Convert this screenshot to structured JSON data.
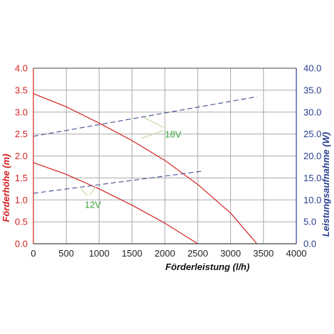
{
  "chart_data": {
    "type": "line",
    "title": "",
    "xlabel": "Förderleistung (l/h)",
    "ylabel_left": "Förderhöhe (m)",
    "ylabel_right": "Leistungsaufnahme (W)",
    "xlim": [
      0,
      4000
    ],
    "ylim_left": [
      0,
      4
    ],
    "ylim_right": [
      0,
      40
    ],
    "x_ticks": [
      "0",
      "500",
      "1000",
      "1500",
      "2000",
      "2500",
      "3000",
      "3500",
      "4000"
    ],
    "y_left_ticks": [
      "0.0",
      "0.5",
      "1.0",
      "1.5",
      "2.0",
      "2.5",
      "3.0",
      "3.5",
      "4.0"
    ],
    "y_right_ticks": [
      "0.0",
      "5.0",
      "10.0",
      "15.0",
      "20.0",
      "25.0",
      "30.0",
      "35.0",
      "40.0"
    ],
    "grid": true,
    "colors": {
      "left_axis": "#d42020",
      "right_axis": "#2b3f8f",
      "head_curve": "#d42020",
      "power_curve": "#4a5a9a",
      "annotation": "#3aa33a",
      "leader": "#c8d8a8",
      "grid": "#aaaaaa",
      "frame": "#444444"
    },
    "series": [
      {
        "axis": "left",
        "style": "solid",
        "x": [
          0,
          500,
          1000,
          1500,
          2000,
          2500
        ],
        "y": [
          1.85,
          1.58,
          1.25,
          0.88,
          0.47,
          0.0
        ]
      },
      {
        "axis": "left",
        "style": "solid",
        "x": [
          0,
          500,
          1000,
          1500,
          2000,
          2500,
          3000,
          3400
        ],
        "y": [
          3.42,
          3.12,
          2.75,
          2.35,
          1.9,
          1.35,
          0.7,
          0.0
        ]
      },
      {
        "axis": "right",
        "style": "dashed",
        "x": [
          0,
          2550
        ],
        "y": [
          11.5,
          16.5
        ]
      },
      {
        "axis": "right",
        "style": "dashed",
        "x": [
          0,
          3400
        ],
        "y": [
          24.5,
          33.5
        ]
      }
    ],
    "annotations": [
      {
        "text": "12V",
        "x": 780,
        "y_left": 0.9,
        "leaders": [
          [
            820,
            1.1,
            720,
            1.25
          ],
          [
            850,
            1.1,
            950,
            1.3
          ]
        ]
      },
      {
        "text": "18V",
        "x": 2000,
        "y_left": 2.5,
        "leaders": [
          [
            1980,
            2.58,
            1640,
            2.4
          ],
          [
            1980,
            2.65,
            1680,
            2.88
          ]
        ]
      }
    ]
  }
}
